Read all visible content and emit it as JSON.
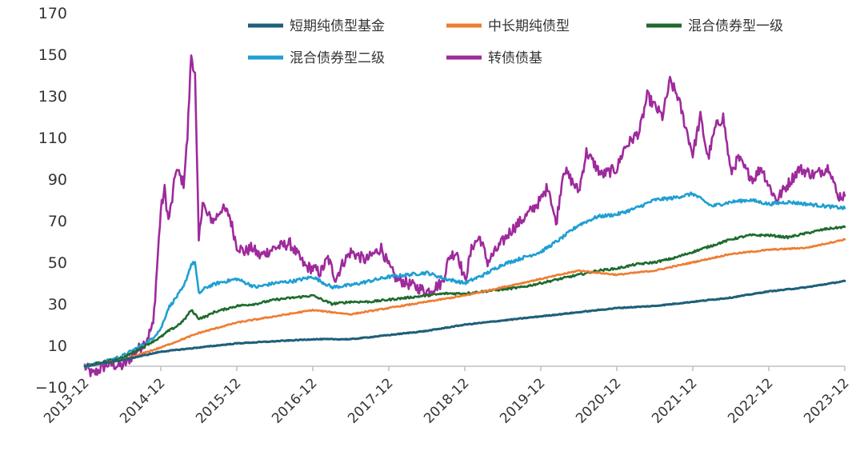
{
  "chart_data": {
    "type": "line",
    "title": "",
    "xlabel": "",
    "ylabel": "",
    "ylim": [
      -10,
      170
    ],
    "yticks": [
      -10,
      10,
      30,
      50,
      70,
      90,
      110,
      130,
      150,
      170
    ],
    "x_tick_labels": [
      "2013-12",
      "2014-12",
      "2015-12",
      "2016-12",
      "2017-12",
      "2018-12",
      "2019-12",
      "2020-12",
      "2021-12",
      "2022-12",
      "2023-12"
    ],
    "grid": false,
    "legend_position": "top",
    "series": [
      {
        "name": "短期纯债型基金",
        "color": "#1f5f7a",
        "x": [
          0,
          0.5,
          1,
          1.5,
          2,
          2.5,
          3,
          3.5,
          4,
          4.5,
          5,
          5.5,
          6,
          6.5,
          7,
          7.5,
          8,
          8.5,
          9,
          9.5,
          10
        ],
        "values": [
          0,
          3,
          7,
          9,
          11,
          12,
          13,
          13,
          15,
          17,
          20,
          22,
          24,
          26,
          28,
          29,
          31,
          33,
          36,
          38,
          41
        ]
      },
      {
        "name": "中长期纯债型",
        "color": "#ee7d31",
        "x": [
          0,
          0.5,
          1,
          1.5,
          2,
          2.5,
          3,
          3.5,
          4,
          4.5,
          5,
          5.5,
          6,
          6.5,
          7,
          7.5,
          8,
          8.5,
          9,
          9.5,
          10
        ],
        "values": [
          0,
          3,
          9,
          16,
          21,
          24,
          27,
          25,
          28,
          31,
          34,
          38,
          42,
          46,
          44,
          46,
          50,
          54,
          56,
          57,
          61
        ]
      },
      {
        "name": "混合债券型一级",
        "color": "#1e6b2d",
        "x": [
          0,
          0.5,
          1,
          1.1,
          1.2,
          1.3,
          1.4,
          1.5,
          1.6,
          1.7,
          1.8,
          2,
          2.25,
          2.5,
          2.75,
          3,
          3.25,
          3.5,
          3.75,
          4,
          4.25,
          4.5,
          4.75,
          5,
          5.25,
          5.5,
          5.75,
          6,
          6.25,
          6.5,
          6.75,
          7,
          7.25,
          7.5,
          7.75,
          8,
          8.25,
          8.5,
          8.75,
          9,
          9.25,
          9.5,
          9.75,
          10
        ],
        "values": [
          0,
          4,
          14,
          17,
          19,
          22,
          27,
          23,
          24,
          26,
          27,
          29,
          30,
          32,
          33,
          34,
          30,
          31,
          31,
          32,
          33,
          34,
          35,
          35,
          36,
          37,
          38,
          40,
          42,
          44,
          46,
          47,
          49,
          50,
          52,
          55,
          58,
          61,
          63,
          63,
          62,
          64,
          66,
          67
        ]
      },
      {
        "name": "混合债券型二级",
        "color": "#1f9fd2",
        "x": [
          0,
          0.25,
          0.5,
          0.75,
          0.85,
          1,
          1.1,
          1.2,
          1.3,
          1.4,
          1.45,
          1.5,
          1.6,
          1.75,
          2,
          2.25,
          2.5,
          2.75,
          3,
          3.25,
          3.5,
          3.75,
          4,
          4.25,
          4.5,
          4.75,
          5,
          5.25,
          5.5,
          5.75,
          6,
          6.25,
          6.5,
          6.75,
          7,
          7.25,
          7.5,
          7.75,
          8,
          8.25,
          8.5,
          8.75,
          9,
          9.25,
          9.5,
          9.75,
          10
        ],
        "values": [
          0,
          2,
          5,
          10,
          12,
          18,
          28,
          33,
          38,
          49,
          50,
          35,
          38,
          40,
          42,
          38,
          40,
          41,
          43,
          38,
          39,
          41,
          43,
          44,
          45,
          42,
          40,
          44,
          49,
          52,
          55,
          61,
          68,
          72,
          73,
          76,
          80,
          81,
          83,
          77,
          79,
          80,
          78,
          79,
          78,
          77,
          76
        ]
      },
      {
        "name": "转债债基",
        "color": "#9e2a9c",
        "x": [
          0,
          0.1,
          0.3,
          0.5,
          0.6,
          0.7,
          0.8,
          0.9,
          1,
          1.05,
          1.1,
          1.15,
          1.2,
          1.3,
          1.35,
          1.4,
          1.45,
          1.5,
          1.55,
          1.6,
          1.7,
          1.8,
          1.9,
          2,
          2.1,
          2.2,
          2.3,
          2.5,
          2.7,
          2.9,
          3,
          3.1,
          3.2,
          3.3,
          3.4,
          3.5,
          3.7,
          3.9,
          4,
          4.1,
          4.3,
          4.5,
          4.7,
          4.8,
          4.9,
          5,
          5.1,
          5.2,
          5.3,
          5.5,
          5.6,
          5.8,
          6,
          6.1,
          6.2,
          6.3,
          6.5,
          6.6,
          6.8,
          7,
          7.1,
          7.3,
          7.4,
          7.6,
          7.7,
          7.8,
          8,
          8.1,
          8.2,
          8.3,
          8.4,
          8.5,
          8.6,
          8.7,
          8.8,
          8.9,
          9,
          9.1,
          9.3,
          9.4,
          9.6,
          9.8,
          9.9,
          10
        ],
        "values": [
          0,
          -4,
          1,
          0,
          4,
          8,
          12,
          20,
          75,
          85,
          70,
          80,
          95,
          88,
          110,
          150,
          140,
          60,
          80,
          73,
          70,
          76,
          73,
          58,
          55,
          57,
          53,
          57,
          59,
          48,
          47,
          45,
          52,
          42,
          50,
          55,
          51,
          57,
          48,
          42,
          39,
          36,
          40,
          53,
          55,
          41,
          58,
          62,
          50,
          60,
          65,
          72,
          80,
          87,
          68,
          95,
          84,
          103,
          92,
          95,
          105,
          113,
          130,
          120,
          137,
          130,
          102,
          120,
          100,
          115,
          120,
          93,
          100,
          94,
          90,
          96,
          87,
          80,
          90,
          95,
          92,
          96,
          82,
          82
        ]
      }
    ]
  }
}
